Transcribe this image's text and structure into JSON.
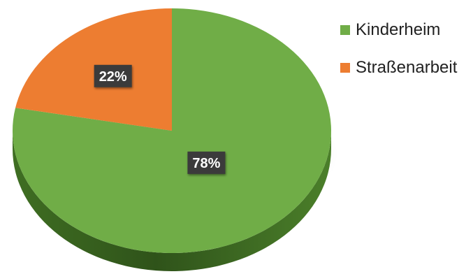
{
  "chart_data": {
    "type": "pie",
    "style": "3d",
    "title": "",
    "categories": [
      "Kinderheim",
      "Straßenarbeit"
    ],
    "values": [
      78,
      22
    ],
    "unit": "%",
    "data_labels": [
      "78%",
      "22%"
    ],
    "colors": [
      "#70ad47",
      "#ed7d31"
    ],
    "legend_position": "right"
  }
}
